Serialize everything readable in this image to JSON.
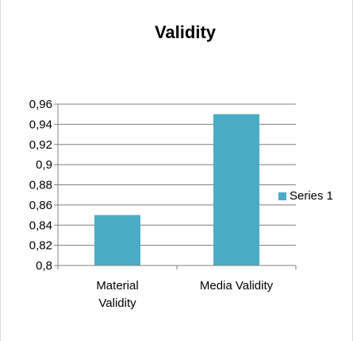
{
  "chart_data": {
    "type": "bar",
    "title": "Validity",
    "categories": [
      "Material Validity",
      "Media Validity"
    ],
    "category_lines": [
      [
        "Material",
        "Validity"
      ],
      [
        "Media Validity"
      ]
    ],
    "series": [
      {
        "name": "Series 1",
        "values": [
          0.85,
          0.95
        ],
        "color": "#4bacc6"
      }
    ],
    "ylim": [
      0.8,
      0.96
    ],
    "yticks": [
      "0,8",
      "0,82",
      "0,84",
      "0,86",
      "0,88",
      "0,9",
      "0,92",
      "0,94",
      "0,96"
    ],
    "grid": true,
    "legend_position": "right"
  }
}
